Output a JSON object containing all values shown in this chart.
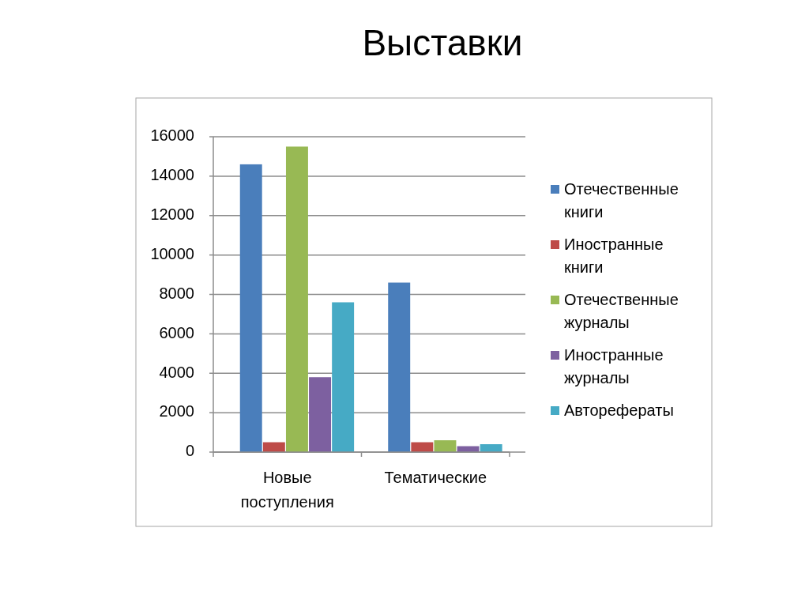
{
  "chart_data": {
    "type": "bar",
    "title": "Выставки",
    "categories": [
      "Новые поступления",
      "Тематические"
    ],
    "series": [
      {
        "name": "Отечественные книги",
        "color": "#4a7ebb",
        "values": [
          14600,
          8600
        ]
      },
      {
        "name": "Иностранные книги",
        "color": "#be4b48",
        "values": [
          500,
          500
        ]
      },
      {
        "name": "Отечественные журналы",
        "color": "#98b954",
        "values": [
          15500,
          600
        ]
      },
      {
        "name": "Иностранные журналы",
        "color": "#7d60a0",
        "values": [
          3800,
          300
        ]
      },
      {
        "name": "Авторефераты",
        "color": "#46aac5",
        "values": [
          7600,
          400
        ]
      }
    ],
    "ylim": [
      0,
      16000
    ],
    "yticks": [
      0,
      2000,
      4000,
      6000,
      8000,
      10000,
      12000,
      14000,
      16000
    ],
    "grid": "y",
    "legend": "right"
  }
}
